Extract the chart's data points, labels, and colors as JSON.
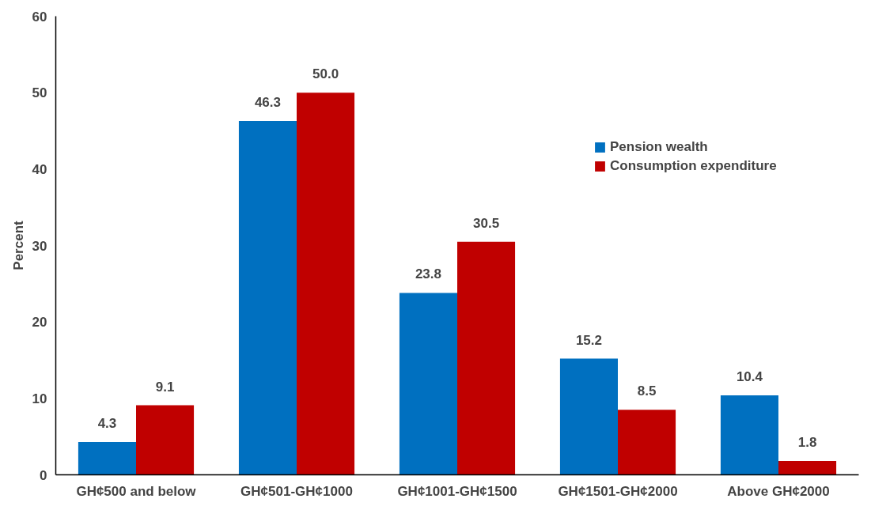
{
  "chart_data": {
    "type": "bar",
    "ylabel": "Percent",
    "categories": [
      "GH¢500 and below",
      "GH¢501-GH¢1000",
      "GH¢1001-GH¢1500",
      "GH¢1501-GH¢2000",
      "Above GH¢2000"
    ],
    "series": [
      {
        "name": "Pension wealth",
        "color": "#0070c0",
        "values": [
          4.3,
          46.3,
          23.8,
          15.2,
          10.4
        ],
        "value_labels": [
          "4.3",
          "46.3",
          "23.8",
          "15.2",
          "10.4"
        ]
      },
      {
        "name": "Consumption expenditure",
        "color": "#c00000",
        "values": [
          9.1,
          50,
          30.5,
          8.5,
          1.8
        ],
        "value_labels": [
          "9.1",
          "50.0",
          "30.5",
          "8.5",
          "1.8"
        ]
      }
    ],
    "ylim": [
      0,
      60
    ],
    "yticks": [
      0,
      10,
      20,
      30,
      40,
      50,
      60
    ],
    "grid": false,
    "legend": "top right"
  }
}
